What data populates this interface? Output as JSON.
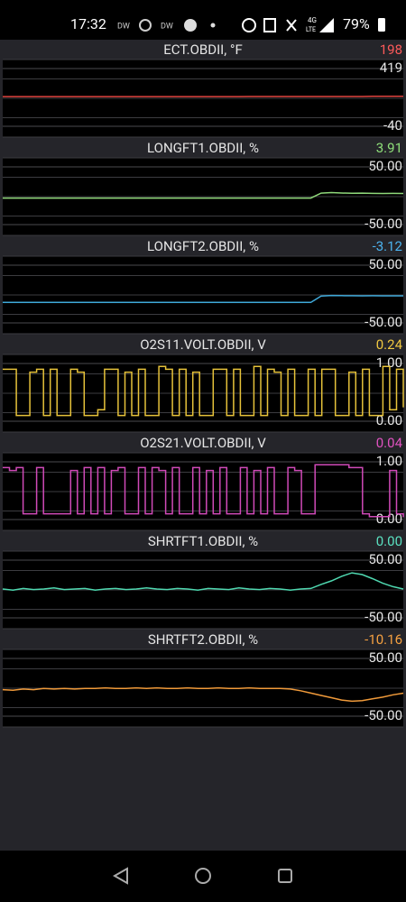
{
  "status_bar": {
    "time": "17:32",
    "indicators": [
      "DW",
      "DW"
    ],
    "network": "4G",
    "network_sub": "LTE",
    "battery": "79%"
  },
  "chart_data": [
    {
      "type": "line",
      "title": "ECT.OBDII, °F",
      "current": "198",
      "color": "#e0443f",
      "current_color": "#ff5a5a",
      "ylim": [
        -40,
        419
      ],
      "yticks": [
        -40,
        419
      ],
      "values": [
        196,
        196,
        196,
        196,
        196,
        196,
        196,
        196,
        196,
        196,
        196,
        196,
        196,
        196,
        196,
        196,
        196,
        196,
        196,
        196,
        196,
        196,
        196,
        196,
        197,
        197,
        197,
        197,
        197,
        197,
        197,
        197,
        197,
        197,
        197,
        197,
        198,
        198,
        198,
        198
      ]
    },
    {
      "type": "line",
      "title": "LONGFT1.OBDII, %",
      "current": "3.91",
      "color": "#8fd87a",
      "current_color": "#8fe07a",
      "ylim": [
        -50,
        50
      ],
      "yticks": [
        {
          "value": -50,
          "label": "-50.00"
        },
        {
          "value": 50,
          "label": "50.00"
        }
      ],
      "values": [
        -4,
        -4,
        -4,
        -4,
        -4,
        -4,
        -4,
        -4,
        -4,
        -4,
        -4,
        -4,
        -4,
        -4,
        -4,
        -4,
        -4,
        -4,
        -4,
        -4,
        -4,
        -4,
        -4,
        -4,
        -4,
        -4,
        -4,
        -4,
        -4,
        -4,
        -4,
        4.5,
        5.5,
        4.7,
        4.2,
        4.5,
        4.0,
        3.9,
        4.0,
        3.91
      ]
    },
    {
      "type": "line",
      "title": "LONGFT2.OBDII, %",
      "current": "-3.12",
      "color": "#3fa8d8",
      "current_color": "#4db4f0",
      "ylim": [
        -50,
        50
      ],
      "yticks": [
        {
          "value": -50,
          "label": "-50.00"
        },
        {
          "value": 50,
          "label": "50.00"
        }
      ],
      "values": [
        -14.5,
        -14.5,
        -14.5,
        -14.5,
        -14.5,
        -14.5,
        -14.5,
        -14.5,
        -14.5,
        -14.5,
        -14.5,
        -14.5,
        -14.5,
        -14.5,
        -14.5,
        -14.5,
        -14.5,
        -14.5,
        -14.5,
        -14.5,
        -14.5,
        -14.5,
        -14.5,
        -14.5,
        -14.5,
        -14.5,
        -14.5,
        -14.5,
        -14.5,
        -14.5,
        -14.5,
        -3.5,
        -2.5,
        -2.8,
        -3.0,
        -3.2,
        -3.0,
        -3.1,
        -3.2,
        -3.12
      ]
    },
    {
      "type": "step",
      "title": "O2S11.VOLT.OBDII, V",
      "current": "0.24",
      "color": "#e6c23a",
      "current_color": "#f0c840",
      "ylim": [
        0,
        1
      ],
      "yticks": [
        {
          "value": 0,
          "label": "0.00"
        },
        {
          "value": 1,
          "label": "1.00"
        }
      ],
      "values": [
        0.9,
        0.9,
        0.1,
        0.1,
        0.85,
        0.9,
        0.1,
        0.9,
        0.1,
        0.1,
        0.9,
        0.85,
        0.1,
        0.1,
        0.2,
        0.9,
        0.9,
        0.1,
        0.85,
        0.1,
        0.9,
        0.1,
        0.1,
        0.95,
        0.9,
        0.1,
        0.9,
        0.1,
        0.85,
        0.1,
        0.1,
        0.9,
        0.9,
        0.1,
        0.9,
        0.1,
        0.1,
        0.95,
        0.1,
        0.9,
        0.85,
        0.1,
        0.9,
        0.1,
        0.1,
        0.9,
        0.1,
        0.9,
        0.9,
        0.1,
        0.1,
        0.85,
        0.1,
        0.9,
        0.1,
        0.1,
        0.95,
        0.2,
        0.9,
        0.24
      ]
    },
    {
      "type": "step",
      "title": "O2S21.VOLT.OBDII, V",
      "current": "0.04",
      "color": "#d04ab8",
      "current_color": "#e052c0",
      "ylim": [
        0,
        1
      ],
      "yticks": [
        {
          "value": 0,
          "label": "0.00"
        },
        {
          "value": 1,
          "label": "1.00"
        }
      ],
      "values": [
        0.9,
        0.85,
        0.9,
        0.1,
        0.1,
        0.9,
        0.1,
        0.1,
        0.1,
        0.1,
        0.85,
        0.1,
        0.9,
        0.1,
        0.9,
        0.1,
        0.85,
        0.9,
        0.1,
        0.1,
        0.9,
        0.1,
        0.9,
        0.85,
        0.1,
        0.9,
        0.1,
        0.1,
        0.9,
        0.1,
        0.85,
        0.1,
        0.9,
        0.1,
        0.1,
        0.9,
        0.1,
        0.85,
        0.1,
        0.9,
        0.1,
        0.1,
        0.9,
        0.85,
        0.1,
        0.1,
        0.95,
        0.95,
        0.95,
        0.95,
        0.95,
        0.9,
        0.9,
        0.1,
        0.05,
        0.05,
        0.05,
        0.85,
        0.1,
        0.04
      ]
    },
    {
      "type": "line",
      "title": "SHRTFT1.OBDII, %",
      "current": "0.00",
      "color": "#4fd8b0",
      "current_color": "#5ae0c0",
      "ylim": [
        -50,
        50
      ],
      "yticks": [
        {
          "value": -50,
          "label": "-50.00"
        },
        {
          "value": 50,
          "label": "50.00"
        }
      ],
      "values": [
        0,
        -2,
        1,
        -1,
        0,
        2,
        -1,
        0,
        1,
        -2,
        0,
        1,
        -1,
        0,
        2,
        0,
        -1,
        1,
        0,
        -2,
        1,
        0,
        -1,
        2,
        0,
        -1,
        1,
        0,
        -2,
        0,
        1,
        8,
        14,
        22,
        28,
        25,
        18,
        10,
        4,
        0
      ]
    },
    {
      "type": "line",
      "title": "SHRTFT2.OBDII, %",
      "current": "-10.16",
      "color": "#f09a3a",
      "current_color": "#f5a040",
      "ylim": [
        -50,
        50
      ],
      "yticks": [
        {
          "value": -50,
          "label": "-50.00"
        },
        {
          "value": 50,
          "label": "50.00"
        }
      ],
      "values": [
        -4,
        -5,
        -3,
        -4,
        -2,
        -3,
        -2,
        -3,
        -2,
        -2,
        -1,
        -2,
        -2,
        -1,
        -2,
        -1,
        -2,
        -2,
        -1,
        -2,
        -2,
        -1,
        -2,
        -2,
        -1,
        -2,
        -2,
        -2,
        -3,
        -6,
        -10,
        -14,
        -18,
        -22,
        -24,
        -23,
        -20,
        -17,
        -13,
        -10.16
      ]
    }
  ]
}
